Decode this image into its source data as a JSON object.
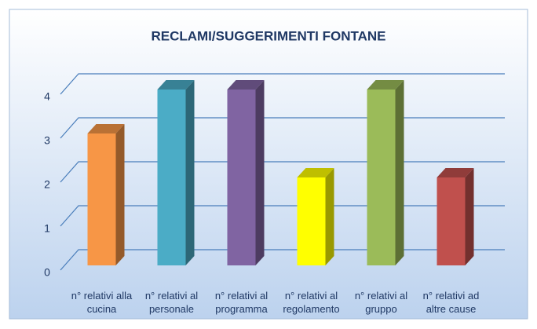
{
  "chart_data": {
    "type": "bar3d",
    "title": "RECLAMI/SUGGERIMENTI FONTANE",
    "categories": [
      "n° relativi alla cucina",
      "n° relativi al personale",
      "n° relativi al programma",
      "n° relativi al regolamento",
      "n° relativi al gruppo",
      "n° relativi ad altre cause"
    ],
    "values": [
      3,
      4,
      4,
      2,
      4,
      2
    ],
    "colors": [
      "#f79646",
      "#4bacc6",
      "#8064a2",
      "#ffff00",
      "#9bbb59",
      "#c0504d"
    ],
    "ylim": [
      0,
      4
    ],
    "yticks": [
      0,
      1,
      2,
      3,
      4
    ],
    "grid": true
  }
}
